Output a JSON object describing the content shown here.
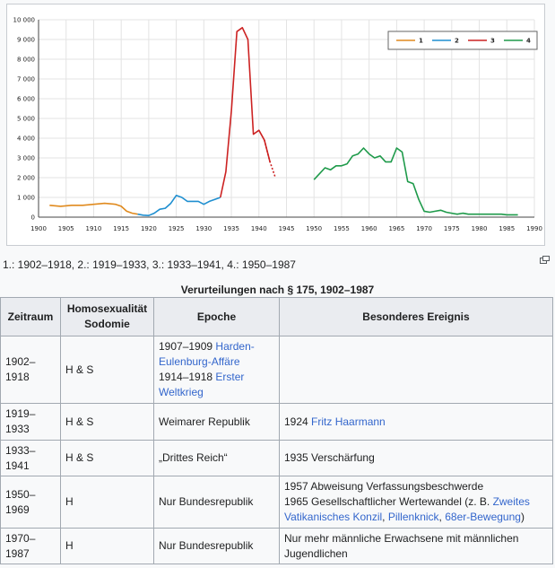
{
  "chart_data": {
    "type": "line",
    "xlim": [
      1900,
      1990
    ],
    "ylim": [
      0,
      10000
    ],
    "xticks": [
      "1900",
      "1905",
      "1910",
      "1915",
      "1920",
      "1925",
      "1930",
      "1935",
      "1940",
      "1945",
      "1950",
      "1955",
      "1960",
      "1965",
      "1970",
      "1975",
      "1980",
      "1985",
      "1990"
    ],
    "yticks": [
      "0",
      "1 000",
      "2 000",
      "3 000",
      "4 000",
      "5 000",
      "6 000",
      "7 000",
      "8 000",
      "9 000",
      "10 000"
    ],
    "grid": true,
    "legend_position": "top-right",
    "series": [
      {
        "name": "1",
        "color": "#e08a1e",
        "x": [
          1902,
          1904,
          1906,
          1908,
          1910,
          1912,
          1914,
          1915,
          1916,
          1917,
          1918
        ],
        "y": [
          600,
          550,
          600,
          600,
          650,
          700,
          650,
          550,
          300,
          200,
          150
        ]
      },
      {
        "name": "2",
        "color": "#1f8fd0",
        "x": [
          1918,
          1919,
          1920,
          1921,
          1922,
          1923,
          1924,
          1925,
          1926,
          1927,
          1928,
          1929,
          1930,
          1931,
          1932,
          1933
        ],
        "y": [
          150,
          100,
          80,
          200,
          400,
          450,
          700,
          1100,
          1000,
          800,
          800,
          800,
          650,
          800,
          900,
          1000
        ]
      },
      {
        "name": "3",
        "color": "#cc2222",
        "x": [
          1933,
          1934,
          1935,
          1936,
          1937,
          1938,
          1939,
          1940,
          1941,
          1942,
          1943
        ],
        "y": [
          1000,
          2300,
          5400,
          9400,
          9600,
          9000,
          4200,
          4400,
          3900,
          2800,
          2000
        ],
        "dashed_from_x": 1942
      },
      {
        "name": "4",
        "color": "#1e9a4a",
        "x": [
          1950,
          1951,
          1952,
          1953,
          1954,
          1955,
          1956,
          1957,
          1958,
          1959,
          1960,
          1961,
          1962,
          1963,
          1964,
          1965,
          1966,
          1967,
          1968,
          1969,
          1970,
          1971,
          1972,
          1973,
          1974,
          1975,
          1976,
          1977,
          1978,
          1979,
          1980,
          1981,
          1982,
          1983,
          1984,
          1985,
          1986,
          1987
        ],
        "y": [
          1900,
          2200,
          2500,
          2400,
          2600,
          2600,
          2700,
          3100,
          3200,
          3500,
          3200,
          3000,
          3100,
          2800,
          2800,
          3500,
          3300,
          1800,
          1700,
          900,
          300,
          250,
          300,
          350,
          250,
          200,
          150,
          200,
          150,
          150,
          150,
          150,
          150,
          150,
          150,
          120,
          120,
          120
        ]
      }
    ]
  },
  "caption": "1.: 1902–1918, 2.: 1919–1933, 3.: 1933–1941, 4.: 1950–1987",
  "enlarge_icon": "enlarge-icon",
  "table": {
    "title": "Verurteilungen nach § 175, 1902–1987",
    "headers": {
      "zeitraum": "Zeitraum",
      "homo_line1": "Homosexualität",
      "homo_line2": "Sodomie",
      "epoche": "Epoche",
      "ereignis": "Besonderes Ereignis"
    },
    "rows": [
      {
        "zeitraum_a": "1902–",
        "zeitraum_b": "1918",
        "hs": "H & S",
        "epoche_1_text": "1907–1909 ",
        "epoche_1_link": "Harden-Eulenburg-Affäre",
        "epoche_2_text": "1914–1918 ",
        "epoche_2_link": "Erster Weltkrieg",
        "ereignis": ""
      },
      {
        "zeitraum_a": "1919–",
        "zeitraum_b": "1933",
        "hs": "H & S",
        "epoche": "Weimarer Republik",
        "ereignis_text": "1924 ",
        "ereignis_link": "Fritz Haarmann"
      },
      {
        "zeitraum_a": "1933–",
        "zeitraum_b": "1941",
        "hs": "H & S",
        "epoche": "„Drittes Reich“",
        "ereignis": "1935 Verschärfung"
      },
      {
        "zeitraum_a": "1950–",
        "zeitraum_b": "1969",
        "hs": "H",
        "epoche": "Nur Bundesrepublik",
        "ereignis_line1": "1957 Abweisung Verfassungsbeschwerde",
        "ereignis_line2_text": "1965 Gesellschaftlicher Wertewandel (z. B. ",
        "ereignis_link_a": "Zweites Vatikanisches Konzil",
        "sep_1": ", ",
        "ereignis_link_b": "Pillenknick",
        "sep_2": ", ",
        "ereignis_link_c": "68er-Bewegung",
        "close": ")"
      },
      {
        "zeitraum_a": "1970–",
        "zeitraum_b": "1987",
        "hs": "H",
        "epoche": "Nur Bundesrepublik",
        "ereignis": "Nur mehr männliche Erwachsene mit männlichen Jugendlichen"
      }
    ]
  }
}
